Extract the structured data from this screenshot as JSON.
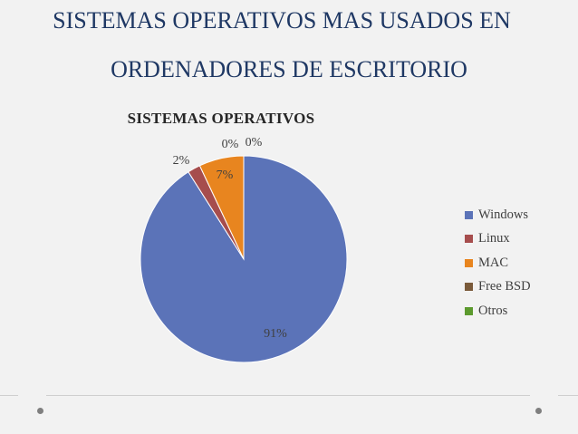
{
  "slide": {
    "title_line1": "SISTEMAS OPERATIVOS MAS USADOS EN",
    "title_line2": "ORDENADORES DE ESCRITORIO"
  },
  "chart_data": {
    "type": "pie",
    "title": "SISTEMAS OPERATIVOS",
    "categories": [
      "Windows",
      "Linux",
      "MAC",
      "Free BSD",
      "Otros"
    ],
    "values": [
      91,
      2,
      7,
      0,
      0
    ],
    "labels": [
      "91%",
      "2%",
      "7%",
      "0%",
      "0%"
    ],
    "colors": [
      "#5b73b8",
      "#a64d4d",
      "#e8851f",
      "#7a5a3a",
      "#5c9a2e"
    ],
    "legend_position": "right"
  }
}
